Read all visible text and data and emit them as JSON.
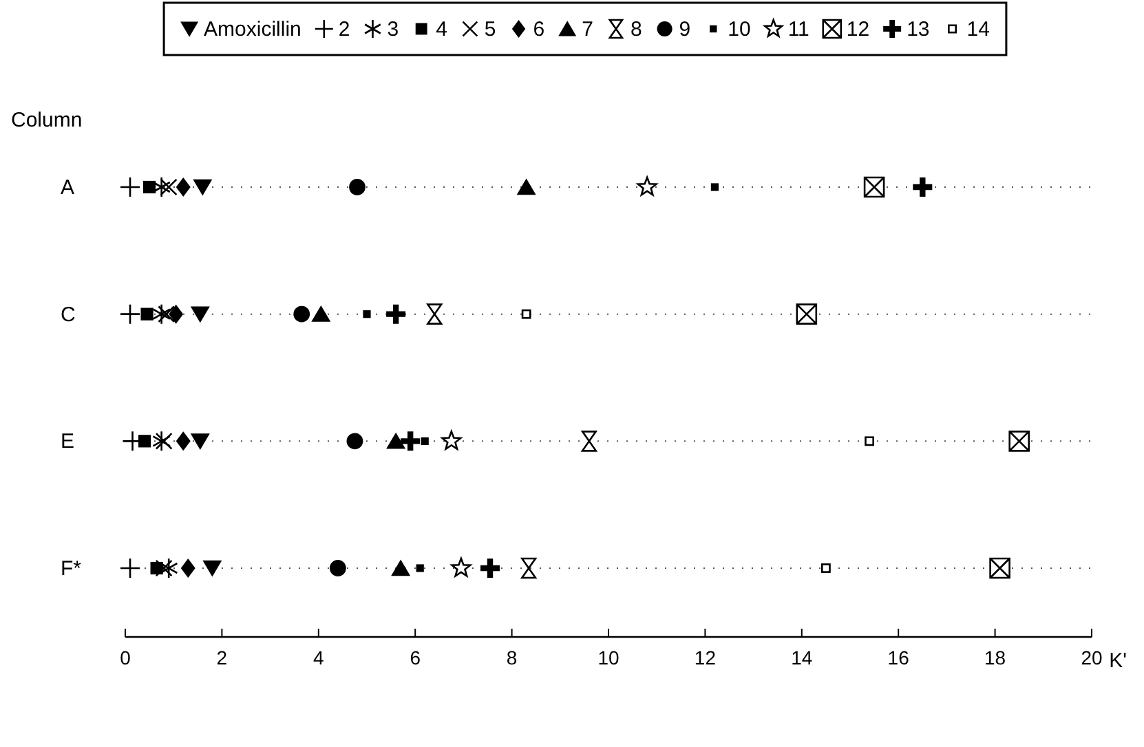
{
  "chart_data": {
    "type": "scatter",
    "orientation": "horizontal",
    "xlabel": "K'",
    "ylabel": "Column",
    "categories": [
      "A",
      "C",
      "E",
      "F*"
    ],
    "xlim": [
      0,
      20
    ],
    "xticks": [
      0,
      2,
      4,
      6,
      8,
      10,
      12,
      14,
      16,
      18,
      20
    ],
    "grid": "y",
    "legend": "top",
    "line_style": "dotted",
    "series": [
      {
        "name": "Amoxicillin",
        "color": "#000000",
        "marker": "triangle-down",
        "values": [
          1.6,
          1.55,
          1.55,
          1.8
        ]
      },
      {
        "name": "2",
        "color": "#000000",
        "marker": "plus",
        "values": [
          0.1,
          0.1,
          0.15,
          0.1
        ]
      },
      {
        "name": "3",
        "color": "#000000",
        "values": [
          0.75,
          0.75,
          0.75,
          0.9
        ]
      },
      {
        "name": "4",
        "color": "#000000",
        "marker": "square",
        "values": [
          0.5,
          0.45,
          0.4,
          0.65
        ]
      },
      {
        "name": "5",
        "color": "#000000",
        "marker": "x",
        "values": [
          0.9,
          0.85,
          0.8,
          0.8
        ]
      },
      {
        "name": "6",
        "color": "#000000",
        "marker": "diamond",
        "values": [
          1.2,
          1.05,
          1.2,
          1.3
        ]
      },
      {
        "name": "7",
        "color": "#000000",
        "marker": "triangle",
        "values": [
          8.3,
          4.05,
          5.6,
          5.7
        ]
      },
      {
        "name": "8",
        "color": "#000000",
        "values": [
          null,
          6.4,
          9.6,
          8.35
        ]
      },
      {
        "name": "9",
        "color": "#000000",
        "marker": "circle",
        "values": [
          4.8,
          3.65,
          4.75,
          4.4
        ]
      },
      {
        "name": "10",
        "color": "#000000",
        "marker": "square-small",
        "values": [
          12.2,
          5.0,
          6.2,
          6.1
        ]
      },
      {
        "name": "11",
        "color": "#000000",
        "marker": "star",
        "values": [
          10.8,
          null,
          6.75,
          6.95
        ]
      },
      {
        "name": "12",
        "color": "#000000",
        "values": [
          15.5,
          14.1,
          18.5,
          18.1
        ]
      },
      {
        "name": "13",
        "color": "#000000",
        "marker": "cross",
        "values": [
          16.5,
          5.6,
          5.9,
          7.55
        ]
      },
      {
        "name": "14",
        "color": "#000000",
        "marker": "square-open",
        "values": [
          null,
          8.3,
          15.4,
          14.5
        ]
      }
    ]
  }
}
